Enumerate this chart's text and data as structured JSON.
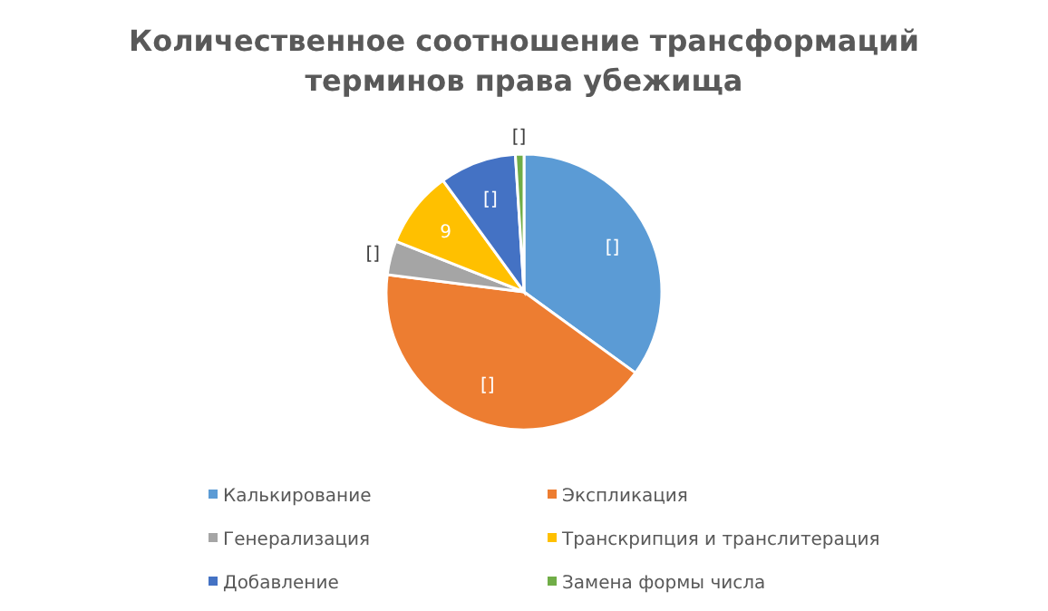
{
  "chart_data": {
    "type": "pie",
    "title": "Количественное соотношение трансформаций терминов права убежища",
    "categories": [
      "Калькирование",
      "Экспликация",
      "Генерализация",
      "Транскрипция и транслитерация",
      "Добавление",
      "Замена формы числа"
    ],
    "values": [
      35,
      42,
      4,
      9,
      9,
      1
    ],
    "colors": [
      "#5b9bd5",
      "#ed7d31",
      "#a5a5a5",
      "#ffc000",
      "#4472c4",
      "#70ad47"
    ],
    "value_labels": [
      "[]",
      "[]",
      "[]",
      "9",
      "[]",
      "[]"
    ],
    "legend": "bottom"
  }
}
